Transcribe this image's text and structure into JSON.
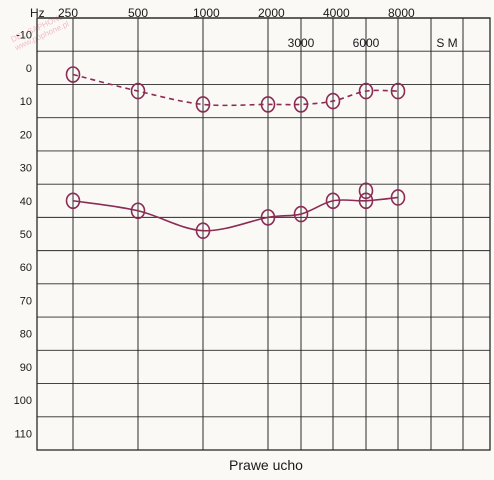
{
  "colors": {
    "background": "#fbf9f6",
    "grid": "#2a2a2a",
    "series": "#8b2c55"
  },
  "watermark": {
    "lines": [
      "DEL-SAPHONE",
      "www.pophone.pl"
    ]
  },
  "chart_data": {
    "type": "line",
    "title": "",
    "xlabel": "Prawe ucho",
    "xunit_label": "Hz",
    "x_ticks_top": [
      "250",
      "500",
      "1000",
      "2000",
      "4000",
      "8000"
    ],
    "x_ticks_second_row": [
      "3000",
      "6000"
    ],
    "extra_column_label": "S M",
    "y_ticks": [
      -10,
      0,
      10,
      20,
      30,
      40,
      50,
      60,
      70,
      80,
      90,
      100,
      110
    ],
    "ylim": [
      -10,
      110
    ],
    "y_inverted": true,
    "grid": true,
    "series": [
      {
        "line_style": "dashed",
        "marker": "circle",
        "points": [
          {
            "x": 250,
            "y": 2
          },
          {
            "x": 500,
            "y": 7
          },
          {
            "x": 1000,
            "y": 11
          },
          {
            "x": 2000,
            "y": 11
          },
          {
            "x": 3000,
            "y": 11
          },
          {
            "x": 4000,
            "y": 10
          },
          {
            "x": 6000,
            "y": 7
          },
          {
            "x": 8000,
            "y": 7
          }
        ]
      },
      {
        "line_style": "solid",
        "marker": "circle",
        "points": [
          {
            "x": 250,
            "y": 40
          },
          {
            "x": 500,
            "y": 43
          },
          {
            "x": 1000,
            "y": 49
          },
          {
            "x": 2000,
            "y": 45
          },
          {
            "x": 3000,
            "y": 44
          },
          {
            "x": 4000,
            "y": 40
          },
          {
            "x": 6000,
            "y": 40
          },
          {
            "x": 6000,
            "y": 37
          },
          {
            "x": 8000,
            "y": 39
          }
        ]
      }
    ]
  }
}
